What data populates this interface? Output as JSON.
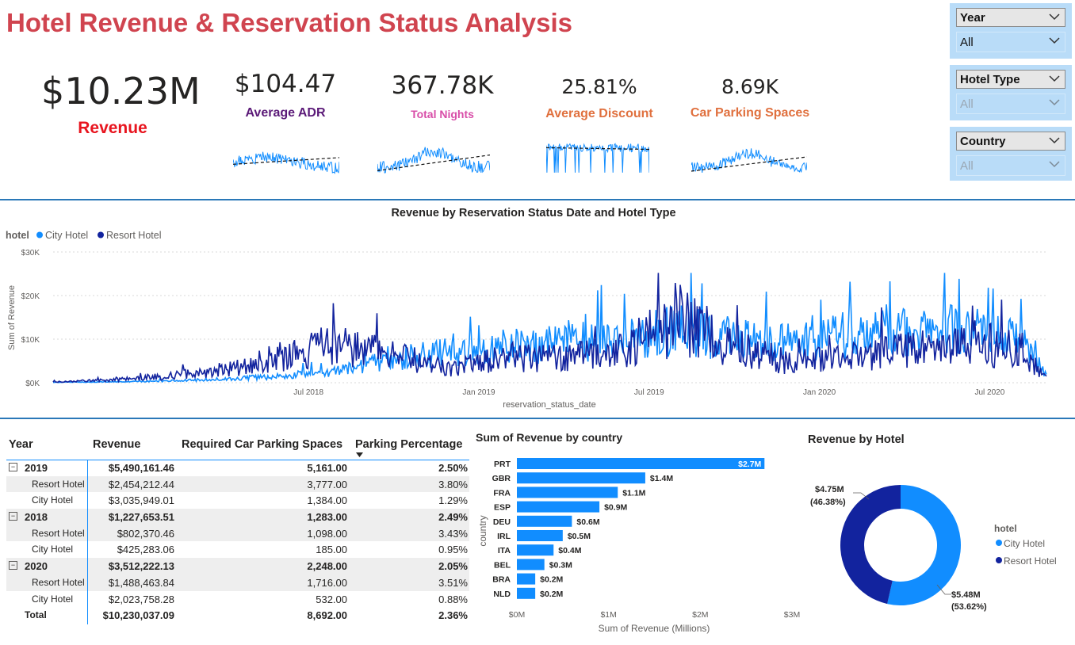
{
  "title": "Hotel Revenue & Reservation Status Analysis",
  "kpis": {
    "revenue": {
      "value": "$10.23M",
      "label": "Revenue",
      "color": "#e8141e"
    },
    "adr": {
      "value": "$104.47",
      "label": "Average ADR",
      "color": "#5b1a78"
    },
    "nights": {
      "value": "367.78K",
      "label": "Total Nights",
      "color": "#d84ea8"
    },
    "discount": {
      "value": "25.81%",
      "label": "Average Discount",
      "color": "#e0703e"
    },
    "parking": {
      "value": "8.69K",
      "label": "Car Parking Spaces",
      "color": "#e0703e"
    }
  },
  "slicers": [
    {
      "title": "Year",
      "value": "All"
    },
    {
      "title": "Hotel Type",
      "value": "All"
    },
    {
      "title": "Country",
      "value": "All"
    }
  ],
  "line_chart": {
    "title": "Revenue by Reservation Status Date and Hotel Type",
    "legend_title": "hotel",
    "ylabel": "Sum of Revenue",
    "xlabel": "reservation_status_date",
    "y_ticks": [
      "$30K",
      "$20K",
      "$10K",
      "$0K"
    ],
    "x_ticks": [
      "Jul 2018",
      "Jan 2019",
      "Jul 2019",
      "Jan 2020",
      "Jul 2020"
    ]
  },
  "table": {
    "headers": [
      "Year",
      "Revenue",
      "Required Car Parking Spaces",
      "Parking Percentage"
    ],
    "rows": [
      {
        "kind": "year",
        "label": "2019",
        "revenue": "$5,490,161.46",
        "parking": "5,161.00",
        "pct": "2.50%"
      },
      {
        "kind": "hotel",
        "label": "Resort Hotel",
        "revenue": "$2,454,212.44",
        "parking": "3,777.00",
        "pct": "3.80%"
      },
      {
        "kind": "hotel",
        "label": "City Hotel",
        "revenue": "$3,035,949.01",
        "parking": "1,384.00",
        "pct": "1.29%"
      },
      {
        "kind": "year",
        "label": "2018",
        "revenue": "$1,227,653.51",
        "parking": "1,283.00",
        "pct": "2.49%"
      },
      {
        "kind": "hotel",
        "label": "Resort Hotel",
        "revenue": "$802,370.46",
        "parking": "1,098.00",
        "pct": "3.43%"
      },
      {
        "kind": "hotel",
        "label": "City Hotel",
        "revenue": "$425,283.06",
        "parking": "185.00",
        "pct": "0.95%"
      },
      {
        "kind": "year",
        "label": "2020",
        "revenue": "$3,512,222.13",
        "parking": "2,248.00",
        "pct": "2.05%"
      },
      {
        "kind": "hotel",
        "label": "Resort Hotel",
        "revenue": "$1,488,463.84",
        "parking": "1,716.00",
        "pct": "3.51%"
      },
      {
        "kind": "hotel",
        "label": "City Hotel",
        "revenue": "$2,023,758.28",
        "parking": "532.00",
        "pct": "0.88%"
      },
      {
        "kind": "total",
        "label": "Total",
        "revenue": "$10,230,037.09",
        "parking": "8,692.00",
        "pct": "2.36%"
      }
    ]
  },
  "colors": {
    "city": "#118dff",
    "resort": "#12239e",
    "accent": "#2a78b8"
  },
  "chart_data": [
    {
      "type": "line",
      "title": "Revenue by Reservation Status Date and Hotel Type",
      "xlabel": "reservation_status_date",
      "ylabel": "Sum of Revenue",
      "ylim": [
        0,
        30000
      ],
      "legend": "top-left",
      "x": [
        "2017-10",
        "2017-12",
        "2018-02",
        "2018-04",
        "2018-06",
        "2018-08",
        "2018-10",
        "2018-12",
        "2019-02",
        "2019-04",
        "2019-06",
        "2019-08",
        "2019-10",
        "2019-12",
        "2020-02",
        "2020-04",
        "2020-06",
        "2020-08",
        "2020-09"
      ],
      "series": [
        {
          "name": "City Hotel",
          "values": [
            100,
            200,
            400,
            800,
            1500,
            2500,
            5500,
            7000,
            8500,
            9000,
            10000,
            12000,
            10000,
            9000,
            11000,
            12000,
            12000,
            10000,
            2000
          ]
        },
        {
          "name": "Resort Hotel",
          "values": [
            200,
            600,
            1500,
            3000,
            6000,
            9000,
            6500,
            3000,
            6000,
            5500,
            7000,
            15000,
            8000,
            4500,
            6000,
            7500,
            8000,
            9000,
            1000
          ]
        }
      ]
    },
    {
      "type": "bar",
      "title": "Sum of Revenue by country",
      "xlabel": "Sum of Revenue (Millions)",
      "ylabel": "country",
      "xlim": [
        0,
        3
      ],
      "x_ticks": [
        "$0M",
        "$1M",
        "$2M",
        "$3M"
      ],
      "categories": [
        "PRT",
        "GBR",
        "FRA",
        "ESP",
        "DEU",
        "IRL",
        "ITA",
        "BEL",
        "BRA",
        "NLD"
      ],
      "values": [
        2.7,
        1.4,
        1.1,
        0.9,
        0.6,
        0.5,
        0.4,
        0.3,
        0.2,
        0.2
      ],
      "labels": [
        "$2.7M",
        "$1.4M",
        "$1.1M",
        "$0.9M",
        "$0.6M",
        "$0.5M",
        "$0.4M",
        "$0.3M",
        "$0.2M",
        "$0.2M"
      ]
    },
    {
      "type": "pie",
      "title": "Revenue by Hotel",
      "legend_title": "hotel",
      "legend": "right",
      "categories": [
        "City Hotel",
        "Resort Hotel"
      ],
      "values": [
        5.48,
        4.75
      ],
      "labels": [
        "$5.48M",
        "$4.75M"
      ],
      "percents": [
        "(53.62%)",
        "(46.38%)"
      ]
    }
  ]
}
